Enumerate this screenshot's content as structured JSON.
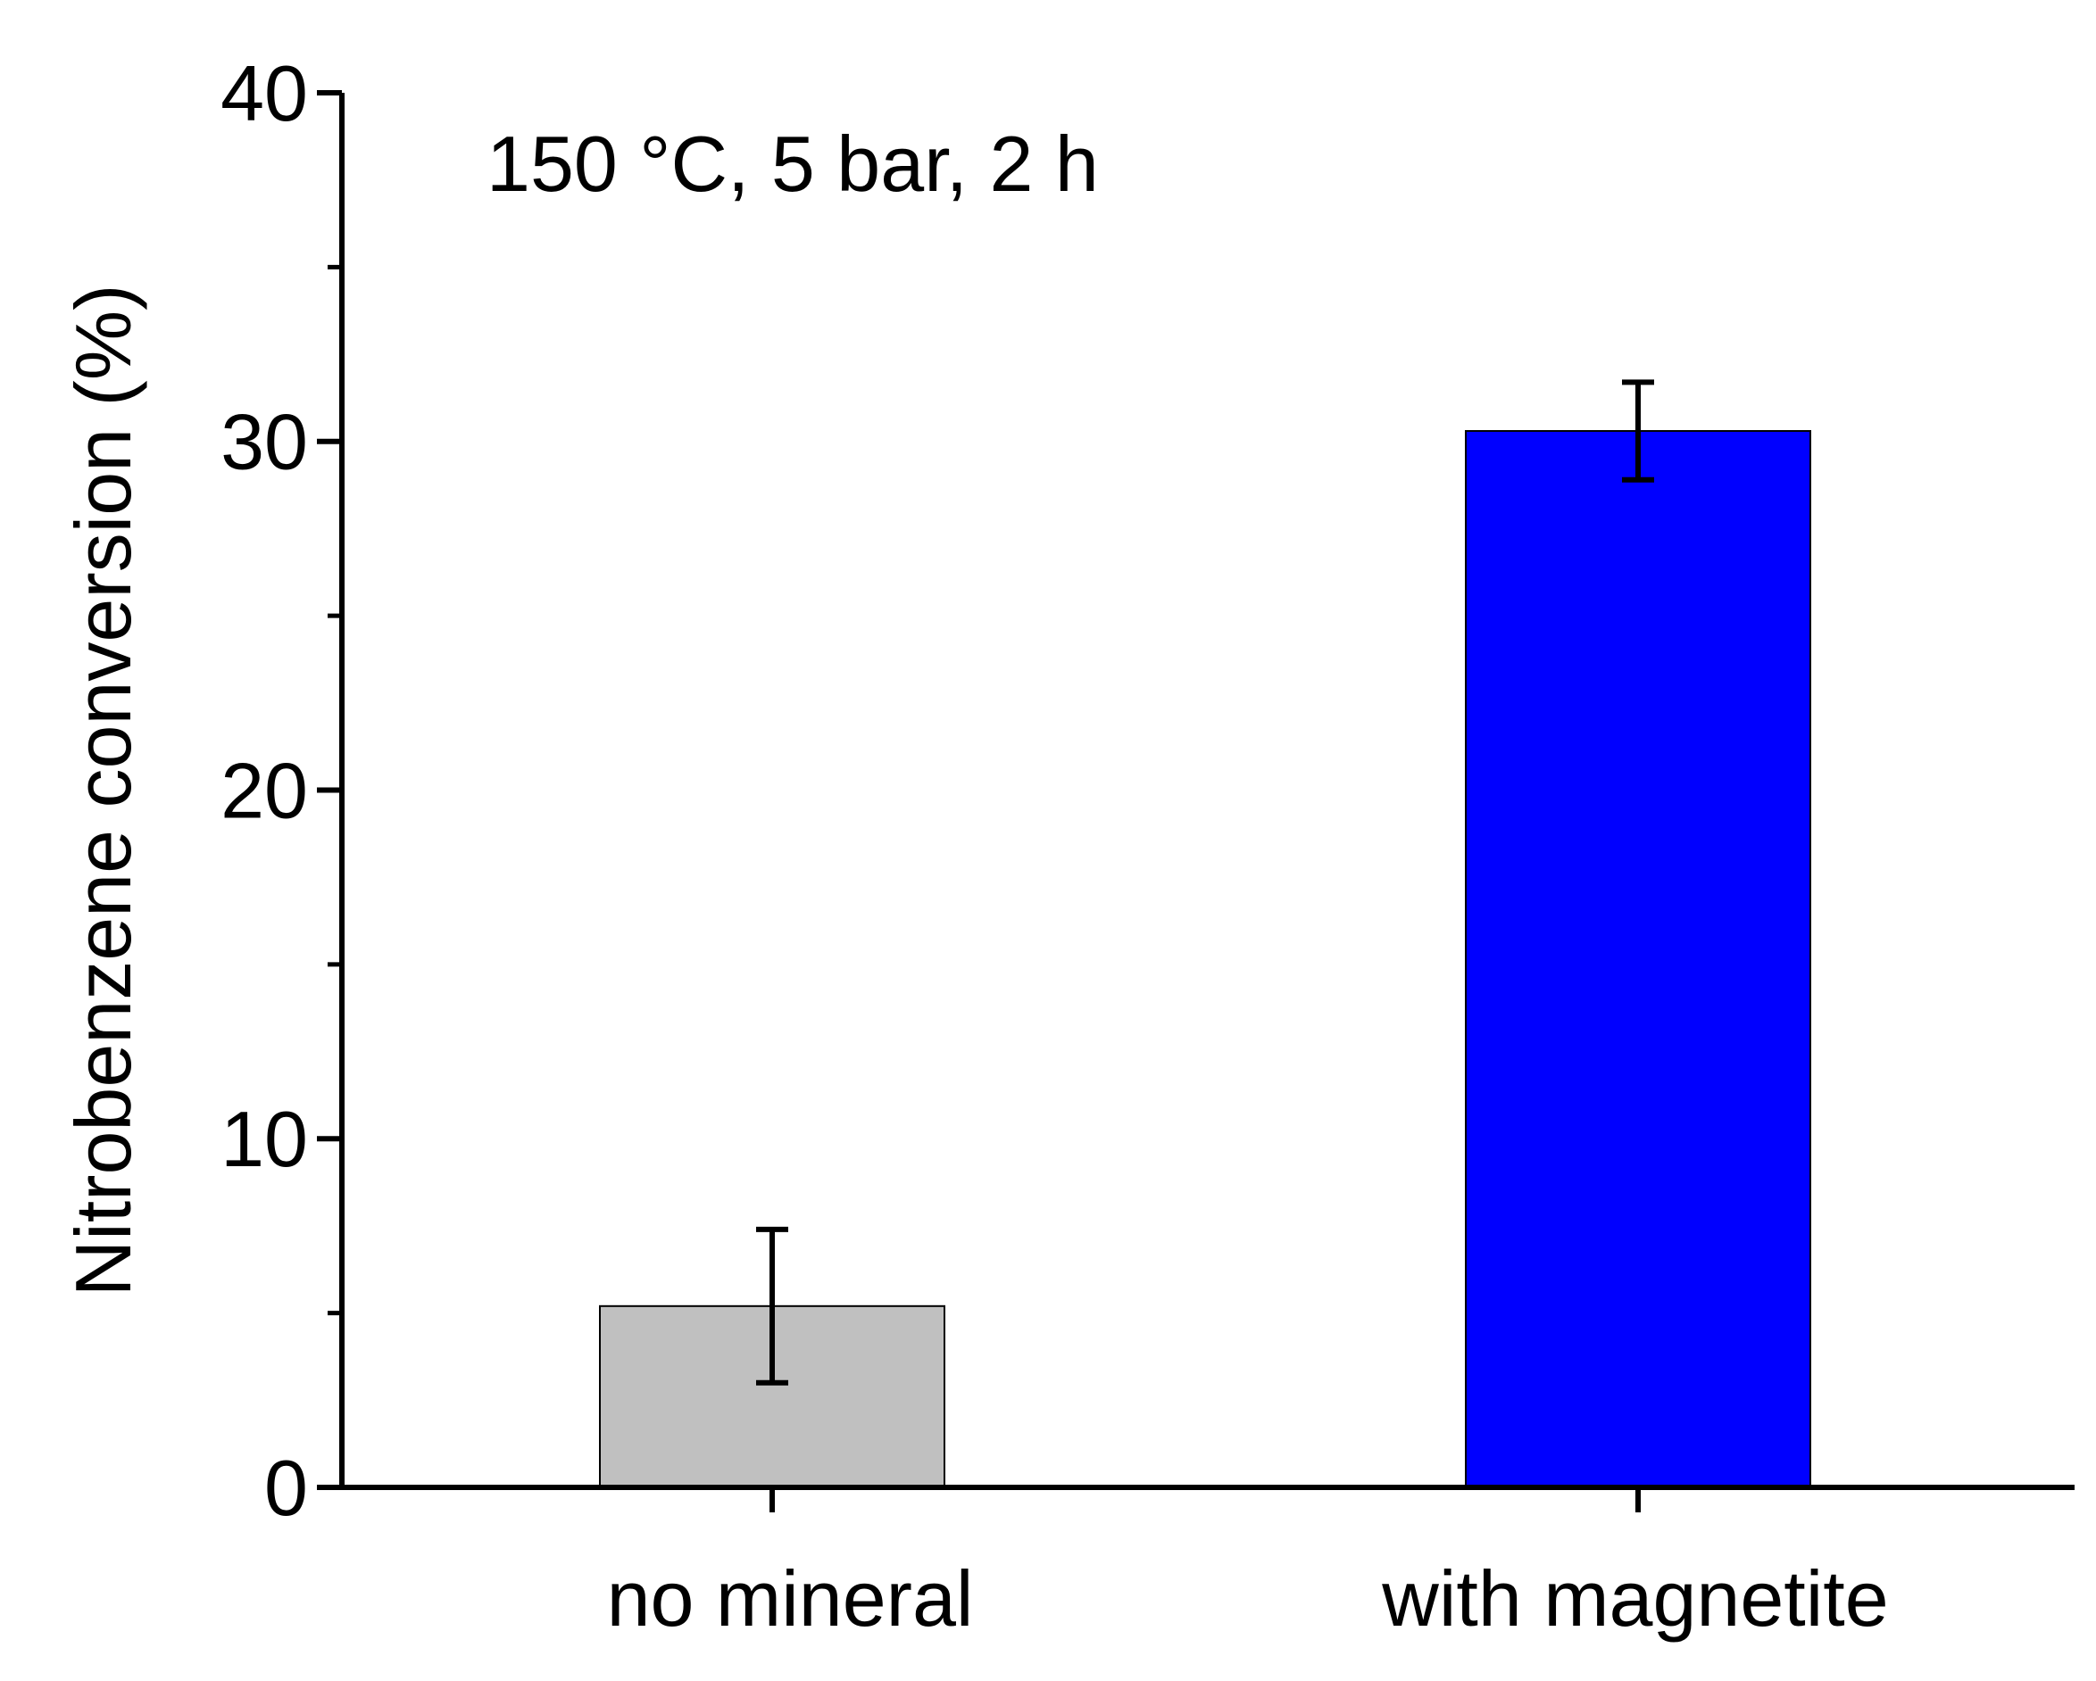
{
  "chart_data": {
    "type": "bar",
    "title": "",
    "annotation": "150 °C, 5 bar, 2 h",
    "xlabel": "",
    "ylabel": "Nitrobenzene conversion (%)",
    "ylim": [
      0,
      40
    ],
    "yticks": [
      0,
      10,
      20,
      30,
      40
    ],
    "yticks_minor": [
      5,
      15,
      25,
      35
    ],
    "grid": false,
    "categories": [
      "no mineral",
      "with magnetite"
    ],
    "values": [
      5.2,
      30.3
    ],
    "errors": [
      2.2,
      1.4
    ],
    "colors": [
      "#c0c0c0",
      "#0000ff"
    ]
  }
}
